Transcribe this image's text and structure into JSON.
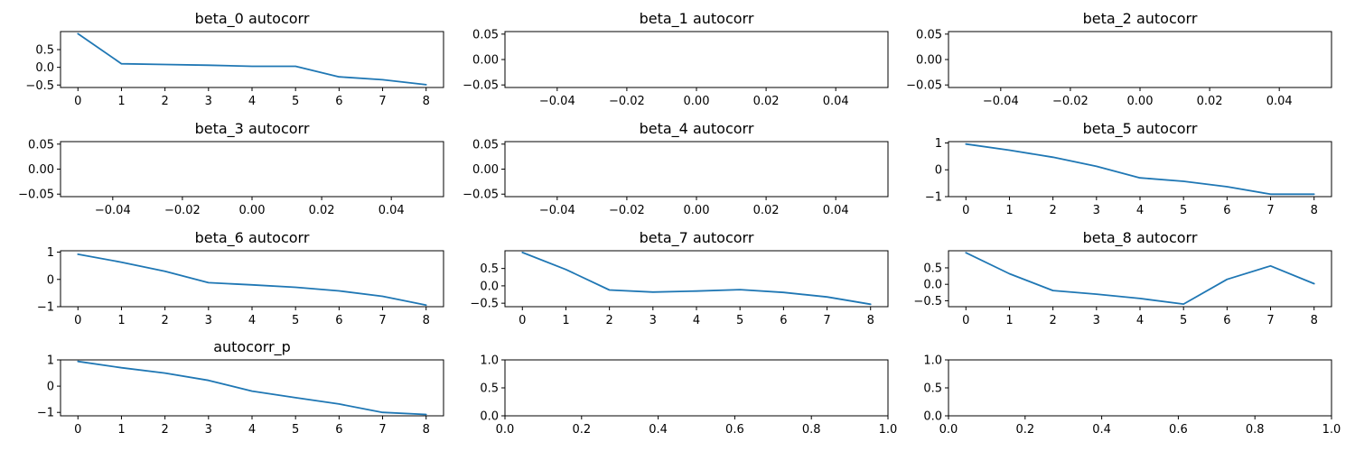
{
  "figure": {
    "line_color": "#1f77b4",
    "background": "#ffffff"
  },
  "chart_data": [
    {
      "type": "line",
      "title": "beta_0 autocorr",
      "x": [
        0,
        1,
        2,
        3,
        4,
        5,
        6,
        7,
        8
      ],
      "series": [
        {
          "values": [
            0.95,
            0.1,
            0.08,
            0.06,
            0.03,
            0.03,
            -0.27,
            -0.35,
            -0.49
          ]
        }
      ],
      "xlim": [
        -0.4,
        8.4
      ],
      "ylim": [
        -0.57,
        1.01
      ],
      "xticks": [
        0,
        1,
        2,
        3,
        4,
        5,
        6,
        7,
        8
      ],
      "xticklabels": [
        "0",
        "1",
        "2",
        "3",
        "4",
        "5",
        "6",
        "7",
        "8"
      ],
      "yticks": [
        -0.5,
        0.0,
        0.5
      ],
      "yticklabels": [
        "−0.5",
        "0.0",
        "0.5"
      ]
    },
    {
      "type": "line",
      "title": "beta_1 autocorr",
      "x": [],
      "series": [
        {
          "values": []
        }
      ],
      "xlim": [
        -0.055,
        0.055
      ],
      "ylim": [
        -0.055,
        0.055
      ],
      "xticks": [
        -0.04,
        -0.02,
        0.0,
        0.02,
        0.04
      ],
      "xticklabels": [
        "−0.04",
        "−0.02",
        "0.00",
        "0.02",
        "0.04"
      ],
      "yticks": [
        -0.05,
        0.0,
        0.05
      ],
      "yticklabels": [
        "−0.05",
        "0.00",
        "0.05"
      ]
    },
    {
      "type": "line",
      "title": "beta_2 autocorr",
      "x": [],
      "series": [
        {
          "values": []
        }
      ],
      "xlim": [
        -0.055,
        0.055
      ],
      "ylim": [
        -0.055,
        0.055
      ],
      "xticks": [
        -0.04,
        -0.02,
        0.0,
        0.02,
        0.04
      ],
      "xticklabels": [
        "−0.04",
        "−0.02",
        "0.00",
        "0.02",
        "0.04"
      ],
      "yticks": [
        -0.05,
        0.0,
        0.05
      ],
      "yticklabels": [
        "−0.05",
        "0.00",
        "0.05"
      ]
    },
    {
      "type": "line",
      "title": "beta_3 autocorr",
      "x": [],
      "series": [
        {
          "values": []
        }
      ],
      "xlim": [
        -0.055,
        0.055
      ],
      "ylim": [
        -0.055,
        0.055
      ],
      "xticks": [
        -0.04,
        -0.02,
        0.0,
        0.02,
        0.04
      ],
      "xticklabels": [
        "−0.04",
        "−0.02",
        "0.00",
        "0.02",
        "0.04"
      ],
      "yticks": [
        -0.05,
        0.0,
        0.05
      ],
      "yticklabels": [
        "−0.05",
        "0.00",
        "0.05"
      ]
    },
    {
      "type": "line",
      "title": "beta_4 autocorr",
      "x": [],
      "series": [
        {
          "values": []
        }
      ],
      "xlim": [
        -0.055,
        0.055
      ],
      "ylim": [
        -0.055,
        0.055
      ],
      "xticks": [
        -0.04,
        -0.02,
        0.0,
        0.02,
        0.04
      ],
      "xticklabels": [
        "−0.04",
        "−0.02",
        "0.00",
        "0.02",
        "0.04"
      ],
      "yticks": [
        -0.05,
        0.0,
        0.05
      ],
      "yticklabels": [
        "−0.05",
        "0.00",
        "0.05"
      ]
    },
    {
      "type": "line",
      "title": "beta_5 autocorr",
      "x": [
        0,
        1,
        2,
        3,
        4,
        5,
        6,
        7,
        8
      ],
      "series": [
        {
          "values": [
            0.96,
            0.73,
            0.47,
            0.13,
            -0.3,
            -0.43,
            -0.63,
            -0.91,
            -0.91
          ]
        }
      ],
      "xlim": [
        -0.4,
        8.4
      ],
      "ylim": [
        -1.0,
        1.05
      ],
      "xticks": [
        0,
        1,
        2,
        3,
        4,
        5,
        6,
        7,
        8
      ],
      "xticklabels": [
        "0",
        "1",
        "2",
        "3",
        "4",
        "5",
        "6",
        "7",
        "8"
      ],
      "yticks": [
        -1,
        0,
        1
      ],
      "yticklabels": [
        "−1",
        "0",
        "1"
      ]
    },
    {
      "type": "line",
      "title": "beta_6 autocorr",
      "x": [
        0,
        1,
        2,
        3,
        4,
        5,
        6,
        7,
        8
      ],
      "series": [
        {
          "values": [
            0.92,
            0.63,
            0.3,
            -0.12,
            -0.2,
            -0.29,
            -0.42,
            -0.62,
            -0.94
          ]
        }
      ],
      "xlim": [
        -0.4,
        8.4
      ],
      "ylim": [
        -1.0,
        1.05
      ],
      "xticks": [
        0,
        1,
        2,
        3,
        4,
        5,
        6,
        7,
        8
      ],
      "xticklabels": [
        "0",
        "1",
        "2",
        "3",
        "4",
        "5",
        "6",
        "7",
        "8"
      ],
      "yticks": [
        -1,
        0,
        1
      ],
      "yticklabels": [
        "−1",
        "0",
        "1"
      ]
    },
    {
      "type": "line",
      "title": "beta_7 autocorr",
      "x": [
        0,
        1,
        2,
        3,
        4,
        5,
        6,
        7,
        8
      ],
      "series": [
        {
          "values": [
            0.96,
            0.47,
            -0.12,
            -0.18,
            -0.15,
            -0.11,
            -0.19,
            -0.32,
            -0.53
          ]
        }
      ],
      "xlim": [
        -0.4,
        8.4
      ],
      "ylim": [
        -0.6,
        1.01
      ],
      "xticks": [
        0,
        1,
        2,
        3,
        4,
        5,
        6,
        7,
        8
      ],
      "xticklabels": [
        "0",
        "1",
        "2",
        "3",
        "4",
        "5",
        "6",
        "7",
        "8"
      ],
      "yticks": [
        -0.5,
        0.0,
        0.5
      ],
      "yticklabels": [
        "−0.5",
        "0.0",
        "0.5"
      ]
    },
    {
      "type": "line",
      "title": "beta_8 autocorr",
      "x": [
        0,
        1,
        2,
        3,
        4,
        5,
        6,
        7,
        8
      ],
      "series": [
        {
          "values": [
            0.96,
            0.32,
            -0.19,
            -0.3,
            -0.43,
            -0.6,
            0.15,
            0.56,
            0.02
          ]
        }
      ],
      "xlim": [
        -0.4,
        8.4
      ],
      "ylim": [
        -0.68,
        1.02
      ],
      "xticks": [
        0,
        1,
        2,
        3,
        4,
        5,
        6,
        7,
        8
      ],
      "xticklabels": [
        "0",
        "1",
        "2",
        "3",
        "4",
        "5",
        "6",
        "7",
        "8"
      ],
      "yticks": [
        -0.5,
        0.0,
        0.5
      ],
      "yticklabels": [
        "−0.5",
        "0.0",
        "0.5"
      ]
    },
    {
      "type": "line",
      "title": "autocorr_p",
      "x": [
        0,
        1,
        2,
        3,
        4,
        5,
        6,
        7,
        8
      ],
      "series": [
        {
          "values": [
            0.94,
            0.7,
            0.5,
            0.22,
            -0.19,
            -0.44,
            -0.68,
            -1.0,
            -1.08
          ]
        }
      ],
      "xlim": [
        -0.4,
        8.4
      ],
      "ylim": [
        -1.13,
        1.0
      ],
      "xticks": [
        0,
        1,
        2,
        3,
        4,
        5,
        6,
        7,
        8
      ],
      "xticklabels": [
        "0",
        "1",
        "2",
        "3",
        "4",
        "5",
        "6",
        "7",
        "8"
      ],
      "yticks": [
        -1,
        0,
        1
      ],
      "yticklabels": [
        "−1",
        "0",
        "1"
      ]
    },
    {
      "type": "line",
      "title": "",
      "x": [],
      "series": [
        {
          "values": []
        }
      ],
      "xlim": [
        0.0,
        1.0
      ],
      "ylim": [
        0.0,
        1.0
      ],
      "xticks": [
        0.0,
        0.2,
        0.4,
        0.6,
        0.8,
        1.0
      ],
      "xticklabels": [
        "0.0",
        "0.2",
        "0.4",
        "0.6",
        "0.8",
        "1.0"
      ],
      "yticks": [
        0.0,
        0.5,
        1.0
      ],
      "yticklabels": [
        "0.0",
        "0.5",
        "1.0"
      ]
    },
    {
      "type": "line",
      "title": "",
      "x": [],
      "series": [
        {
          "values": []
        }
      ],
      "xlim": [
        0.0,
        1.0
      ],
      "ylim": [
        0.0,
        1.0
      ],
      "xticks": [
        0.0,
        0.2,
        0.4,
        0.6,
        0.8,
        1.0
      ],
      "xticklabels": [
        "0.0",
        "0.2",
        "0.4",
        "0.6",
        "0.8",
        "1.0"
      ],
      "yticks": [
        0.0,
        0.5,
        1.0
      ],
      "yticklabels": [
        "0.0",
        "0.5",
        "1.0"
      ]
    }
  ]
}
